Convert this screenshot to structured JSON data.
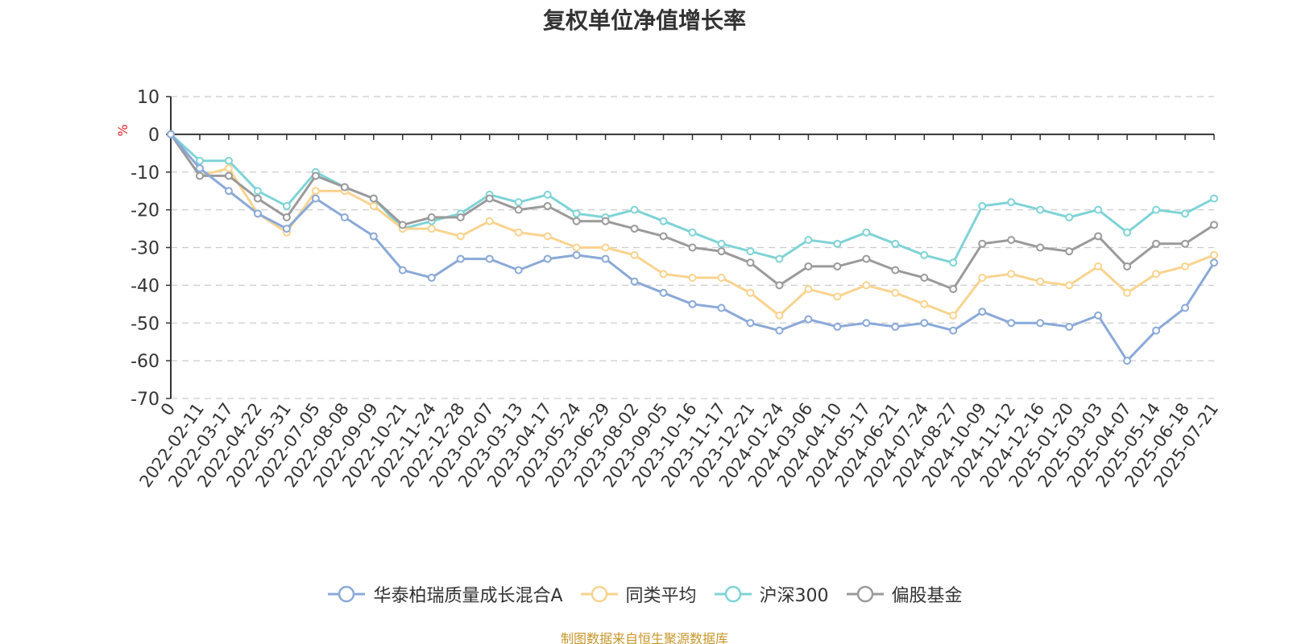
{
  "title": "复权单位净值增长率",
  "source_text": "制图数据来自恒生聚源数据库",
  "source_color": "#c8962a",
  "chart_data": {
    "type": "line",
    "title": "复权单位净值增长率",
    "ylabel": "%",
    "ylim": [
      -70,
      10
    ],
    "yticks": [
      10,
      0,
      -10,
      -20,
      -30,
      -40,
      -50,
      -60,
      -70
    ],
    "x": [
      "0",
      "2022-02-11",
      "2022-03-17",
      "2022-04-22",
      "2022-05-31",
      "2022-07-05",
      "2022-08-08",
      "2022-09-09",
      "2022-10-21",
      "2022-11-24",
      "2022-12-28",
      "2023-02-07",
      "2023-03-13",
      "2023-04-17",
      "2023-05-24",
      "2023-06-29",
      "2023-08-02",
      "2023-09-05",
      "2023-10-16",
      "2023-11-17",
      "2023-12-21",
      "2024-01-24",
      "2024-03-06",
      "2024-04-10",
      "2024-05-17",
      "2024-06-21",
      "2024-07-24",
      "2024-08-27",
      "2024-10-09",
      "2024-11-12",
      "2024-12-16",
      "2025-01-20",
      "2025-03-03",
      "2025-04-07",
      "2025-05-14",
      "2025-06-18",
      "2025-07-21"
    ],
    "grid": true,
    "legend_position": "bottom",
    "series": [
      {
        "name": "华泰柏瑞质量成长混合A",
        "color": "#8aa9d8",
        "values": [
          0,
          -9,
          -15,
          -21,
          -25,
          -17,
          -22,
          -27,
          -36,
          -38,
          -33,
          -33,
          -36,
          -33,
          -32,
          -33,
          -39,
          -42,
          -45,
          -46,
          -50,
          -52,
          -49,
          -51,
          -50,
          -51,
          -50,
          -52,
          -47,
          -50,
          -50,
          -51,
          -48,
          -60,
          -52,
          -46,
          -34
        ]
      },
      {
        "name": "同类平均",
        "color": "#f9d38e",
        "values": [
          0,
          -11,
          -9,
          -21,
          -26,
          -15,
          -15,
          -19,
          -25,
          -25,
          -27,
          -23,
          -26,
          -27,
          -30,
          -30,
          -32,
          -37,
          -38,
          -38,
          -42,
          -48,
          -41,
          -43,
          -40,
          -42,
          -45,
          -48,
          -38,
          -37,
          -39,
          -40,
          -35,
          -42,
          -37,
          -35,
          -32
        ]
      },
      {
        "name": "沪深300",
        "color": "#7fd3d6",
        "values": [
          0,
          -7,
          -7,
          -15,
          -19,
          -10,
          -14,
          -17,
          -25,
          -23,
          -21,
          -16,
          -18,
          -16,
          -21,
          -22,
          -20,
          -23,
          -26,
          -29,
          -31,
          -33,
          -28,
          -29,
          -26,
          -29,
          -32,
          -34,
          -19,
          -18,
          -20,
          -22,
          -20,
          -26,
          -20,
          -21,
          -17
        ]
      },
      {
        "name": "偏股基金",
        "color": "#9a9a9a",
        "values": [
          0,
          -11,
          -11,
          -17,
          -22,
          -11,
          -14,
          -17,
          -24,
          -22,
          -22,
          -17,
          -20,
          -19,
          -23,
          -23,
          -25,
          -27,
          -30,
          -31,
          -34,
          -40,
          -35,
          -35,
          -33,
          -36,
          -38,
          -41,
          -29,
          -28,
          -30,
          -31,
          -27,
          -35,
          -29,
          -29,
          -24
        ]
      }
    ]
  }
}
